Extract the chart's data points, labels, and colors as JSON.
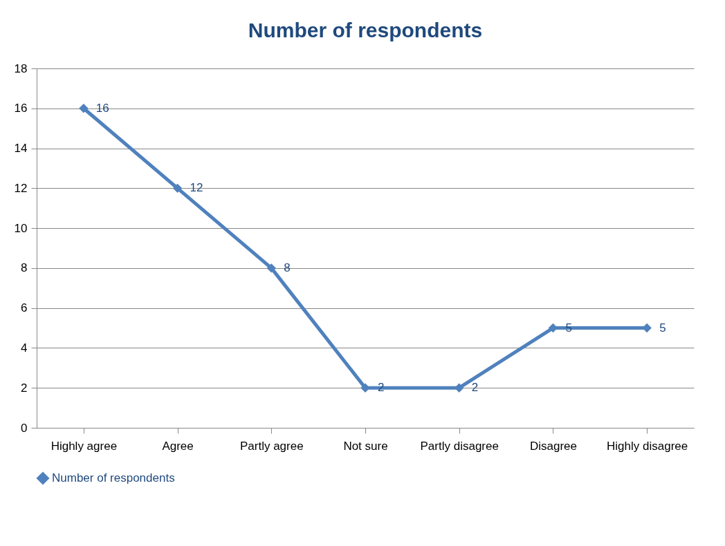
{
  "chart_data": {
    "type": "line",
    "title": "Number of respondents",
    "categories": [
      "Highly agree",
      "Agree",
      "Partly agree",
      "Not sure",
      "Partly disagree",
      "Disagree",
      "Highly disagree"
    ],
    "series": [
      {
        "name": "Number of respondents",
        "color": "#4f81bd",
        "values": [
          16,
          12,
          8,
          2,
          2,
          5,
          5
        ]
      }
    ],
    "ylim": [
      0,
      18
    ],
    "yticks": [
      0,
      2,
      4,
      6,
      8,
      10,
      12,
      14,
      16,
      18
    ],
    "grid": "y",
    "legend": "bottom",
    "marker": "diamond",
    "line_style": "solid",
    "data_labels": true
  }
}
